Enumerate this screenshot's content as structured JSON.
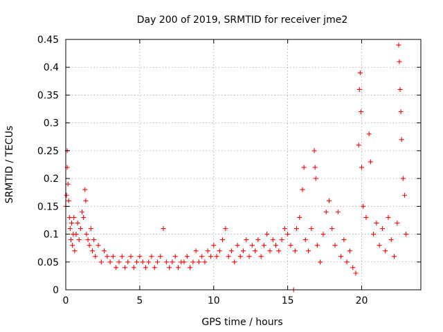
{
  "chart_data": {
    "type": "scatter",
    "title": "Day 200 of 2019, SRMTID for receiver jme2",
    "xlabel": "GPS time / hours",
    "ylabel": "SRMTID / TECUs",
    "xlim": [
      0,
      24
    ],
    "ylim": [
      0,
      0.45
    ],
    "xticks": [
      "0",
      "5",
      "10",
      "15",
      "20"
    ],
    "yticks": [
      "0",
      "0.05",
      "0.1",
      "0.15",
      "0.2",
      "0.25",
      "0.3",
      "0.35",
      "0.4",
      "0.45"
    ],
    "xtick_values": [
      0,
      5,
      10,
      15,
      20
    ],
    "ytick_values": [
      0,
      0.05,
      0.1,
      0.15,
      0.2,
      0.25,
      0.3,
      0.35,
      0.4,
      0.45
    ],
    "grid": true,
    "marker": "plus",
    "color": "#ff0000",
    "series": [
      {
        "name": "SRMTID",
        "points": [
          [
            0.0,
            0.15
          ],
          [
            0.05,
            0.17
          ],
          [
            0.1,
            0.25
          ],
          [
            0.1,
            0.22
          ],
          [
            0.15,
            0.19
          ],
          [
            0.2,
            0.16
          ],
          [
            0.25,
            0.13
          ],
          [
            0.3,
            0.11
          ],
          [
            0.35,
            0.09
          ],
          [
            0.4,
            0.12
          ],
          [
            0.45,
            0.08
          ],
          [
            0.5,
            0.1
          ],
          [
            0.55,
            0.13
          ],
          [
            0.6,
            0.07
          ],
          [
            0.7,
            0.1
          ],
          [
            0.8,
            0.12
          ],
          [
            0.9,
            0.09
          ],
          [
            1.0,
            0.11
          ],
          [
            1.1,
            0.14
          ],
          [
            1.2,
            0.13
          ],
          [
            1.3,
            0.18
          ],
          [
            1.35,
            0.16
          ],
          [
            1.4,
            0.1
          ],
          [
            1.5,
            0.09
          ],
          [
            1.6,
            0.08
          ],
          [
            1.7,
            0.11
          ],
          [
            1.8,
            0.07
          ],
          [
            1.9,
            0.09
          ],
          [
            2.0,
            0.06
          ],
          [
            2.2,
            0.08
          ],
          [
            2.4,
            0.05
          ],
          [
            2.6,
            0.07
          ],
          [
            2.8,
            0.06
          ],
          [
            3.0,
            0.05
          ],
          [
            3.2,
            0.06
          ],
          [
            3.4,
            0.04
          ],
          [
            3.6,
            0.05
          ],
          [
            3.8,
            0.06
          ],
          [
            4.0,
            0.04
          ],
          [
            4.2,
            0.05
          ],
          [
            4.4,
            0.06
          ],
          [
            4.6,
            0.04
          ],
          [
            4.8,
            0.05
          ],
          [
            5.0,
            0.06
          ],
          [
            5.2,
            0.05
          ],
          [
            5.4,
            0.04
          ],
          [
            5.6,
            0.05
          ],
          [
            5.8,
            0.06
          ],
          [
            6.0,
            0.04
          ],
          [
            6.2,
            0.05
          ],
          [
            6.4,
            0.06
          ],
          [
            6.6,
            0.11
          ],
          [
            6.8,
            0.05
          ],
          [
            7.0,
            0.04
          ],
          [
            7.2,
            0.05
          ],
          [
            7.4,
            0.06
          ],
          [
            7.6,
            0.04
          ],
          [
            7.8,
            0.05
          ],
          [
            8.0,
            0.05
          ],
          [
            8.2,
            0.06
          ],
          [
            8.4,
            0.04
          ],
          [
            8.6,
            0.05
          ],
          [
            8.8,
            0.07
          ],
          [
            9.0,
            0.05
          ],
          [
            9.2,
            0.06
          ],
          [
            9.4,
            0.05
          ],
          [
            9.6,
            0.07
          ],
          [
            9.8,
            0.06
          ],
          [
            10.0,
            0.08
          ],
          [
            10.2,
            0.06
          ],
          [
            10.4,
            0.07
          ],
          [
            10.6,
            0.09
          ],
          [
            10.8,
            0.11
          ],
          [
            11.0,
            0.06
          ],
          [
            11.2,
            0.07
          ],
          [
            11.4,
            0.05
          ],
          [
            11.6,
            0.08
          ],
          [
            11.8,
            0.06
          ],
          [
            12.0,
            0.07
          ],
          [
            12.2,
            0.09
          ],
          [
            12.4,
            0.06
          ],
          [
            12.6,
            0.08
          ],
          [
            12.8,
            0.07
          ],
          [
            13.0,
            0.09
          ],
          [
            13.2,
            0.06
          ],
          [
            13.4,
            0.08
          ],
          [
            13.6,
            0.1
          ],
          [
            13.8,
            0.07
          ],
          [
            14.0,
            0.09
          ],
          [
            14.2,
            0.08
          ],
          [
            14.4,
            0.07
          ],
          [
            14.6,
            0.09
          ],
          [
            14.8,
            0.11
          ],
          [
            15.0,
            0.1
          ],
          [
            15.2,
            0.08
          ],
          [
            15.4,
            0.0
          ],
          [
            15.5,
            0.07
          ],
          [
            15.6,
            0.11
          ],
          [
            15.8,
            0.13
          ],
          [
            16.0,
            0.18
          ],
          [
            16.1,
            0.22
          ],
          [
            16.2,
            0.09
          ],
          [
            16.4,
            0.07
          ],
          [
            16.6,
            0.11
          ],
          [
            16.8,
            0.25
          ],
          [
            16.85,
            0.22
          ],
          [
            16.9,
            0.2
          ],
          [
            17.0,
            0.08
          ],
          [
            17.2,
            0.05
          ],
          [
            17.4,
            0.1
          ],
          [
            17.6,
            0.14
          ],
          [
            17.8,
            0.16
          ],
          [
            18.0,
            0.11
          ],
          [
            18.2,
            0.08
          ],
          [
            18.4,
            0.14
          ],
          [
            18.6,
            0.06
          ],
          [
            18.8,
            0.09
          ],
          [
            19.0,
            0.05
          ],
          [
            19.2,
            0.07
          ],
          [
            19.4,
            0.04
          ],
          [
            19.6,
            0.03
          ],
          [
            19.8,
            0.26
          ],
          [
            19.85,
            0.36
          ],
          [
            19.9,
            0.39
          ],
          [
            19.95,
            0.32
          ],
          [
            20.0,
            0.22
          ],
          [
            20.1,
            0.15
          ],
          [
            20.3,
            0.13
          ],
          [
            20.5,
            0.28
          ],
          [
            20.6,
            0.23
          ],
          [
            20.8,
            0.1
          ],
          [
            21.0,
            0.12
          ],
          [
            21.2,
            0.08
          ],
          [
            21.4,
            0.11
          ],
          [
            21.6,
            0.07
          ],
          [
            21.8,
            0.13
          ],
          [
            22.0,
            0.09
          ],
          [
            22.2,
            0.06
          ],
          [
            22.4,
            0.12
          ],
          [
            22.5,
            0.44
          ],
          [
            22.55,
            0.41
          ],
          [
            22.6,
            0.36
          ],
          [
            22.65,
            0.32
          ],
          [
            22.7,
            0.27
          ],
          [
            22.8,
            0.2
          ],
          [
            22.9,
            0.17
          ],
          [
            23.0,
            0.1
          ]
        ]
      }
    ]
  }
}
